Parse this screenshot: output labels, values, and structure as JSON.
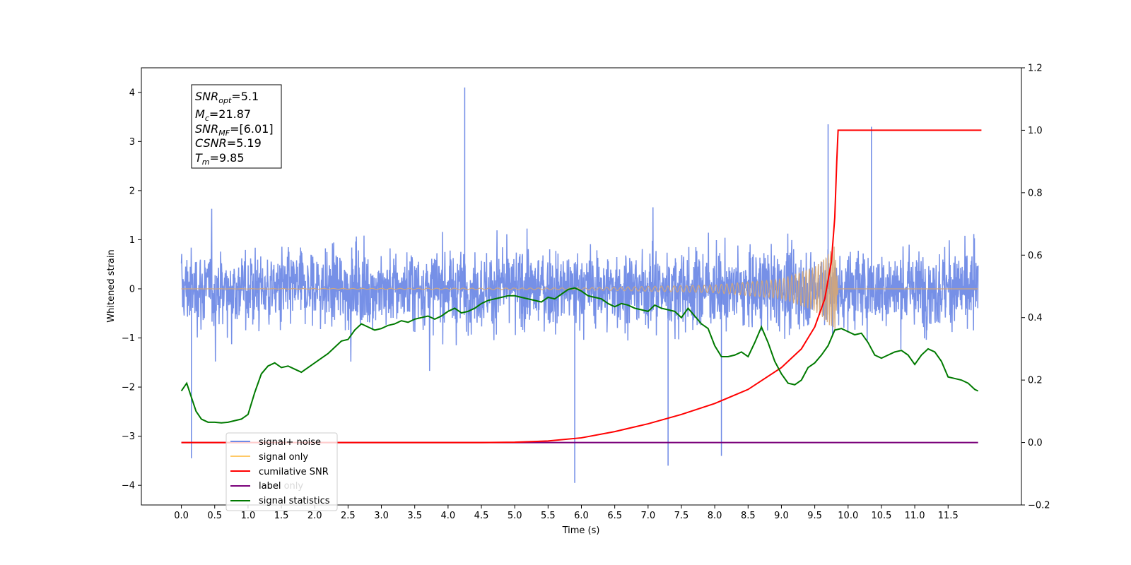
{
  "chart_data": {
    "type": "line",
    "xlabel": "Time (s)",
    "ylabel": "Whitened strain",
    "xlim": [
      -0.6,
      12.6
    ],
    "ylim": [
      -4.4,
      4.5
    ],
    "y2lim": [
      -0.2,
      1.2
    ],
    "x_ticks": [
      "0.0",
      "0.5",
      "1.0",
      "1.5",
      "2.0",
      "2.5",
      "3.0",
      "3.5",
      "4.0",
      "4.5",
      "5.0",
      "5.5",
      "6.0",
      "6.5",
      "7.0",
      "7.5",
      "8.0",
      "8.5",
      "9.0",
      "9.5",
      "10.0",
      "10.5",
      "11.0",
      "11.5"
    ],
    "y_ticks": [
      -4,
      -3,
      -2,
      -1,
      0,
      1,
      2,
      3,
      4
    ],
    "y2_ticks": [
      "−0.2",
      "0.0",
      "0.2",
      "0.4",
      "0.6",
      "0.8",
      "1.0",
      "1.2"
    ],
    "grid": false,
    "legend_position": "bottom-left",
    "annotation": {
      "snr_opt": "=5.1",
      "mc": "=21.87",
      "snr_mf": "=[6.01]",
      "csnr": "=5.19",
      "tm": "=9.85"
    },
    "legend": [
      {
        "label": "signal+ noise",
        "color": "#6f8ae6"
      },
      {
        "label": "signal only",
        "color": "#ffc966"
      },
      {
        "label": "cumilative SNR",
        "color": "#ff0000"
      },
      {
        "label": "label",
        "color": "#7a007a"
      },
      {
        "label": "signal statistics",
        "color": "#007a00"
      }
    ],
    "background_text": "label only",
    "series": [
      {
        "name": "signal+ noise",
        "axis": "left",
        "color": "#6f8ae6",
        "description": "whitened noise plus signal, approx. ±1.3 typical with spikes",
        "peaks": [
          [
            4.25,
            4.1
          ],
          [
            5.9,
            -3.95
          ],
          [
            9.7,
            3.35
          ],
          [
            10.35,
            3.3
          ],
          [
            0.15,
            -3.45
          ],
          [
            8.1,
            -3.4
          ],
          [
            7.3,
            -3.6
          ]
        ]
      },
      {
        "name": "signal only",
        "axis": "left",
        "color": "#d2a679",
        "description": "chirp ending near 9.85 s",
        "x": [
          0.0,
          6.0,
          8.0,
          9.0,
          9.5,
          9.7,
          9.8,
          9.85,
          12.0
        ],
        "amplitude": [
          0.0,
          0.02,
          0.08,
          0.2,
          0.45,
          0.7,
          0.9,
          0.0,
          0.0
        ]
      },
      {
        "name": "cumilative SNR",
        "axis": "right",
        "color": "#ff0000",
        "x": [
          0.0,
          4.5,
          5.0,
          5.5,
          6.0,
          6.5,
          7.0,
          7.5,
          8.0,
          8.5,
          9.0,
          9.3,
          9.5,
          9.65,
          9.75,
          9.8,
          9.83,
          9.85,
          12.0
        ],
        "values": [
          0.0,
          0.0,
          0.001,
          0.005,
          0.015,
          0.035,
          0.06,
          0.09,
          0.125,
          0.17,
          0.24,
          0.3,
          0.37,
          0.46,
          0.58,
          0.72,
          0.9,
          1.0,
          1.0
        ]
      },
      {
        "name": "label",
        "axis": "right",
        "color": "#7a007a",
        "x": [
          0.0,
          11.95
        ],
        "values": [
          0.0,
          0.0
        ]
      },
      {
        "name": "signal statistics",
        "axis": "right",
        "color": "#007a00",
        "x": [
          0.0,
          0.08,
          0.15,
          0.22,
          0.3,
          0.4,
          0.5,
          0.6,
          0.7,
          0.8,
          0.9,
          1.0,
          1.1,
          1.2,
          1.3,
          1.4,
          1.5,
          1.6,
          1.7,
          1.8,
          1.9,
          2.0,
          2.1,
          2.2,
          2.3,
          2.4,
          2.5,
          2.6,
          2.7,
          2.8,
          2.9,
          3.0,
          3.1,
          3.2,
          3.3,
          3.4,
          3.5,
          3.6,
          3.7,
          3.8,
          3.9,
          4.0,
          4.1,
          4.2,
          4.3,
          4.4,
          4.5,
          4.6,
          4.7,
          4.8,
          4.9,
          5.0,
          5.1,
          5.2,
          5.3,
          5.4,
          5.5,
          5.6,
          5.7,
          5.8,
          5.9,
          6.0,
          6.1,
          6.2,
          6.3,
          6.4,
          6.5,
          6.6,
          6.7,
          6.8,
          6.9,
          7.0,
          7.1,
          7.2,
          7.3,
          7.4,
          7.5,
          7.6,
          7.7,
          7.8,
          7.9,
          8.0,
          8.1,
          8.2,
          8.3,
          8.4,
          8.5,
          8.6,
          8.7,
          8.8,
          8.9,
          9.0,
          9.1,
          9.2,
          9.3,
          9.4,
          9.5,
          9.6,
          9.7,
          9.8,
          9.9,
          10.0,
          10.1,
          10.2,
          10.3,
          10.4,
          10.5,
          10.6,
          10.7,
          10.8,
          10.9,
          11.0,
          11.1,
          11.2,
          11.3,
          11.4,
          11.5,
          11.6,
          11.7,
          11.8,
          11.9,
          11.95
        ],
        "values": [
          0.165,
          0.19,
          0.145,
          0.1,
          0.075,
          0.065,
          0.065,
          0.063,
          0.065,
          0.07,
          0.075,
          0.09,
          0.16,
          0.22,
          0.245,
          0.255,
          0.24,
          0.245,
          0.235,
          0.225,
          0.24,
          0.255,
          0.27,
          0.285,
          0.305,
          0.325,
          0.33,
          0.36,
          0.38,
          0.37,
          0.36,
          0.365,
          0.375,
          0.38,
          0.39,
          0.385,
          0.395,
          0.4,
          0.405,
          0.395,
          0.405,
          0.42,
          0.43,
          0.415,
          0.42,
          0.43,
          0.445,
          0.455,
          0.46,
          0.465,
          0.47,
          0.47,
          0.465,
          0.46,
          0.455,
          0.45,
          0.465,
          0.46,
          0.475,
          0.49,
          0.495,
          0.485,
          0.47,
          0.465,
          0.46,
          0.445,
          0.435,
          0.445,
          0.44,
          0.43,
          0.425,
          0.42,
          0.44,
          0.43,
          0.425,
          0.42,
          0.4,
          0.43,
          0.405,
          0.38,
          0.365,
          0.31,
          0.275,
          0.275,
          0.28,
          0.29,
          0.275,
          0.32,
          0.37,
          0.32,
          0.26,
          0.22,
          0.19,
          0.185,
          0.2,
          0.24,
          0.255,
          0.28,
          0.31,
          0.36,
          0.365,
          0.355,
          0.345,
          0.35,
          0.32,
          0.28,
          0.27,
          0.28,
          0.29,
          0.295,
          0.28,
          0.25,
          0.28,
          0.3,
          0.29,
          0.26,
          0.21,
          0.205,
          0.2,
          0.19,
          0.17,
          0.165
        ]
      }
    ]
  }
}
